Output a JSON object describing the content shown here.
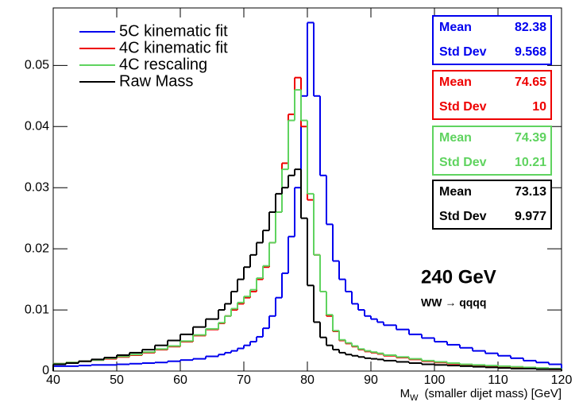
{
  "chart_data": {
    "type": "histogram",
    "bins": [
      40,
      42,
      44,
      46,
      48,
      50,
      52,
      54,
      56,
      58,
      60,
      62,
      64,
      66,
      67,
      68,
      69,
      70,
      71,
      72,
      73,
      74,
      75,
      76,
      77,
      78,
      79,
      80,
      81,
      82,
      83,
      84,
      85,
      86,
      87,
      88,
      89,
      90,
      91,
      92,
      94,
      96,
      98,
      100,
      102,
      104,
      106,
      108,
      110,
      112,
      114,
      116,
      118,
      120
    ],
    "series": [
      {
        "name": "5C kinematic fit",
        "color": "#0000ee",
        "values": [
          0.0008,
          0.0008,
          0.0009,
          0.001,
          0.001,
          0.0011,
          0.0012,
          0.0013,
          0.0014,
          0.0016,
          0.0018,
          0.002,
          0.0024,
          0.0027,
          0.003,
          0.0033,
          0.0037,
          0.0042,
          0.0048,
          0.0056,
          0.007,
          0.009,
          0.012,
          0.016,
          0.022,
          0.03,
          0.045,
          0.057,
          0.045,
          0.032,
          0.024,
          0.018,
          0.015,
          0.013,
          0.011,
          0.01,
          0.009,
          0.0085,
          0.008,
          0.0075,
          0.0068,
          0.006,
          0.0054,
          0.0048,
          0.0043,
          0.0038,
          0.0033,
          0.0029,
          0.0025,
          0.0021,
          0.0017,
          0.0014,
          0.0011
        ]
      },
      {
        "name": "4C kinematic fit",
        "color": "#ee0000",
        "values": [
          0.0012,
          0.0014,
          0.0016,
          0.0018,
          0.002,
          0.0023,
          0.0026,
          0.003,
          0.0035,
          0.004,
          0.0048,
          0.0058,
          0.0068,
          0.0078,
          0.009,
          0.01,
          0.011,
          0.012,
          0.013,
          0.015,
          0.017,
          0.021,
          0.026,
          0.034,
          0.042,
          0.048,
          0.04,
          0.028,
          0.019,
          0.013,
          0.009,
          0.0065,
          0.005,
          0.0045,
          0.004,
          0.0035,
          0.0032,
          0.003,
          0.0028,
          0.0025,
          0.0022,
          0.0019,
          0.0016,
          0.0014,
          0.0012,
          0.001,
          0.0009,
          0.0008,
          0.0007,
          0.0006,
          0.0005,
          0.0004,
          0.0003
        ]
      },
      {
        "name": "4C rescaling",
        "color": "#5fd35f",
        "values": [
          0.0012,
          0.0014,
          0.0016,
          0.0018,
          0.0021,
          0.0024,
          0.0027,
          0.0031,
          0.0036,
          0.0041,
          0.0049,
          0.0059,
          0.0069,
          0.0079,
          0.009,
          0.0102,
          0.0112,
          0.0122,
          0.0133,
          0.0152,
          0.0172,
          0.021,
          0.026,
          0.033,
          0.041,
          0.046,
          0.041,
          0.029,
          0.019,
          0.013,
          0.0092,
          0.0066,
          0.0051,
          0.0046,
          0.0041,
          0.0036,
          0.0033,
          0.0031,
          0.0029,
          0.0026,
          0.0023,
          0.002,
          0.0017,
          0.0015,
          0.0013,
          0.0011,
          0.001,
          0.0009,
          0.0008,
          0.0007,
          0.0006,
          0.0005,
          0.0004
        ]
      },
      {
        "name": "Raw Mass",
        "color": "#000000",
        "values": [
          0.0011,
          0.0013,
          0.0016,
          0.0019,
          0.0022,
          0.0026,
          0.003,
          0.0035,
          0.0042,
          0.005,
          0.006,
          0.0072,
          0.0085,
          0.01,
          0.011,
          0.013,
          0.015,
          0.017,
          0.019,
          0.021,
          0.023,
          0.026,
          0.029,
          0.03,
          0.032,
          0.033,
          0.025,
          0.014,
          0.008,
          0.0055,
          0.0042,
          0.0035,
          0.003,
          0.0027,
          0.0025,
          0.0023,
          0.0021,
          0.002,
          0.0019,
          0.0017,
          0.0015,
          0.0013,
          0.0011,
          0.001,
          0.0009,
          0.0008,
          0.0007,
          0.0006,
          0.0005,
          0.0004,
          0.0004,
          0.0003,
          0.0003
        ]
      }
    ],
    "stats": [
      {
        "labels": [
          "Mean",
          "Std Dev"
        ],
        "values": [
          82.38,
          9.568
        ]
      },
      {
        "labels": [
          "Mean",
          "Std Dev"
        ],
        "values": [
          74.65,
          10
        ]
      },
      {
        "labels": [
          "Mean",
          "Std Dev"
        ],
        "values": [
          74.39,
          10.21
        ]
      },
      {
        "labels": [
          "Mean",
          "Std Dev"
        ],
        "values": [
          73.13,
          9.977
        ]
      }
    ],
    "annotations": [
      "240 GeV",
      "WW → qqqq"
    ],
    "xlabel": {
      "symbol": "M",
      "subscript": "W",
      "text": "(smaller dijet mass)  [GeV]"
    },
    "xlim": [
      40,
      120
    ],
    "xticks": [
      40,
      50,
      60,
      70,
      80,
      90,
      100,
      110,
      120
    ],
    "ylim": [
      0,
      0.0594
    ],
    "yticks": [
      0,
      0.01,
      0.02,
      0.03,
      0.04,
      0.05
    ]
  }
}
